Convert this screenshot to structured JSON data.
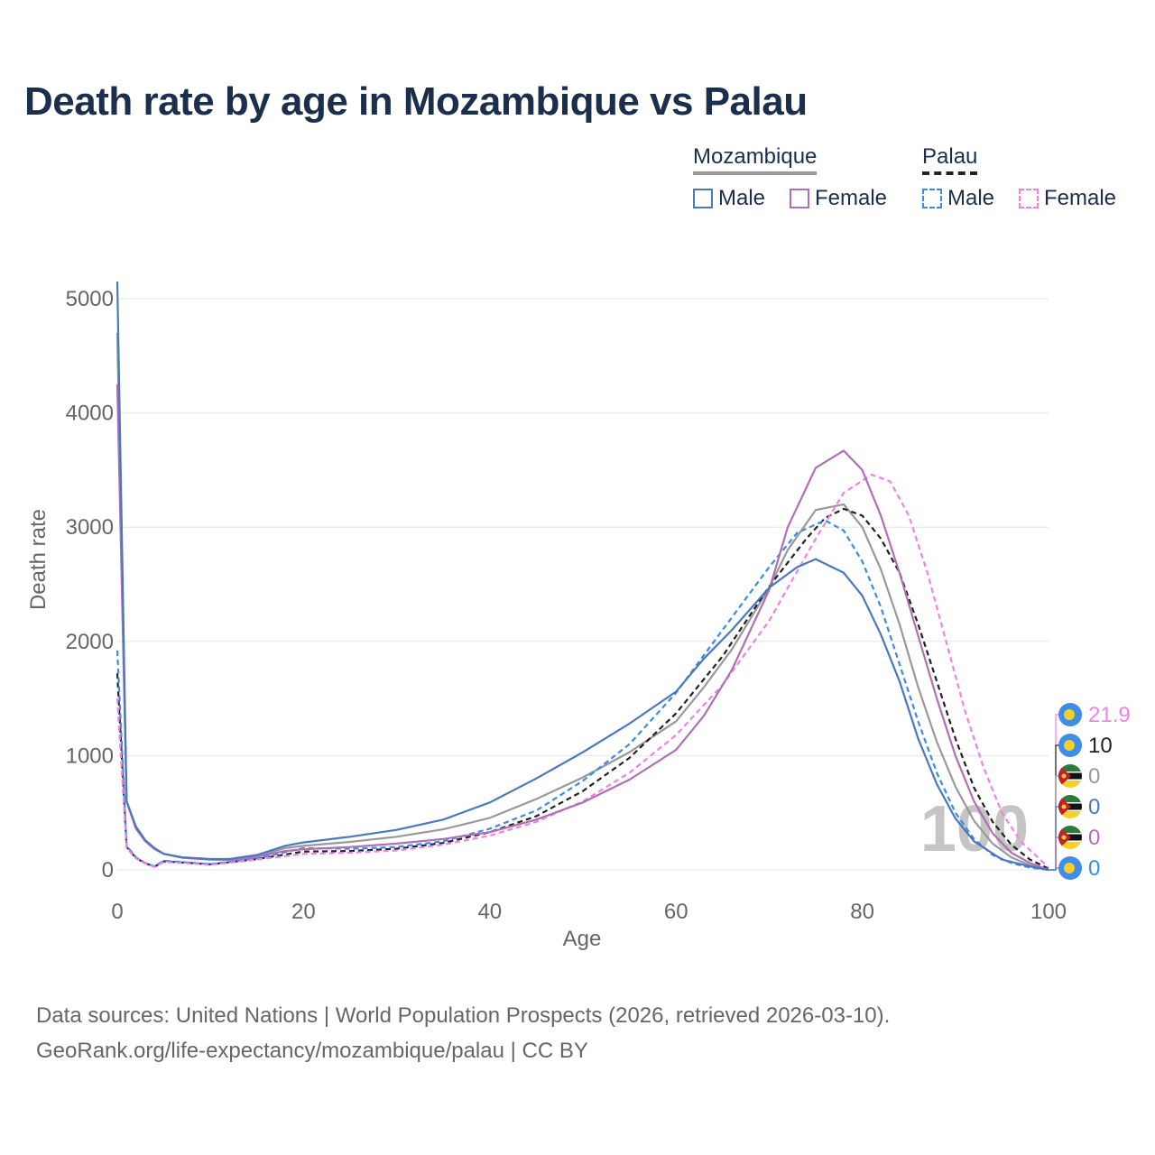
{
  "title": "Death rate by age in Mozambique vs Palau",
  "legend": {
    "groups": [
      {
        "name": "Mozambique",
        "items": [
          {
            "label": "Male",
            "color": "#4a78bf",
            "dash": false
          },
          {
            "label": "Female",
            "color": "#b06fb5",
            "dash": false
          }
        ],
        "underline_color": "#999999"
      },
      {
        "name": "Palau",
        "items": [
          {
            "label": "Male",
            "color": "#3b8be8",
            "dash": true
          },
          {
            "label": "Female",
            "color": "#f082e6",
            "dash": true
          }
        ],
        "underline_color": "#222222"
      }
    ]
  },
  "footer": {
    "line1": "Data sources: United Nations | World Population Prospects (2026, retrieved 2026-03-10).",
    "line2": "GeoRank.org/life-expectancy/mozambique/palau | CC BY"
  },
  "chart_data": {
    "type": "line",
    "title": "Death rate by age in Mozambique vs Palau",
    "xlabel": "Age",
    "ylabel": "Death rate",
    "xlim": [
      0,
      100
    ],
    "ylim": [
      0,
      5150
    ],
    "xticks": [
      0,
      20,
      40,
      60,
      80,
      100
    ],
    "yticks": [
      0,
      1000,
      2000,
      3000,
      4000,
      5000
    ],
    "watermark": "100",
    "series": [
      {
        "name": "Mozambique Male",
        "color": "#4a78bf",
        "dash": false,
        "points": [
          [
            0,
            5150
          ],
          [
            1,
            600
          ],
          [
            2,
            380
          ],
          [
            3,
            260
          ],
          [
            4,
            190
          ],
          [
            5,
            140
          ],
          [
            7,
            110
          ],
          [
            10,
            95
          ],
          [
            12,
            95
          ],
          [
            15,
            130
          ],
          [
            18,
            210
          ],
          [
            20,
            240
          ],
          [
            25,
            290
          ],
          [
            30,
            350
          ],
          [
            35,
            440
          ],
          [
            40,
            590
          ],
          [
            45,
            800
          ],
          [
            50,
            1030
          ],
          [
            55,
            1280
          ],
          [
            60,
            1560
          ],
          [
            63,
            1850
          ],
          [
            66,
            2100
          ],
          [
            70,
            2470
          ],
          [
            73,
            2650
          ],
          [
            75,
            2720
          ],
          [
            78,
            2600
          ],
          [
            80,
            2400
          ],
          [
            82,
            2060
          ],
          [
            84,
            1650
          ],
          [
            86,
            1150
          ],
          [
            88,
            750
          ],
          [
            90,
            450
          ],
          [
            92,
            250
          ],
          [
            95,
            90
          ],
          [
            98,
            30
          ],
          [
            100,
            0
          ]
        ]
      },
      {
        "name": "Mozambique Female",
        "color": "#b06fb5",
        "dash": false,
        "points": [
          [
            0,
            4250
          ],
          [
            1,
            600
          ],
          [
            2,
            360
          ],
          [
            3,
            250
          ],
          [
            4,
            180
          ],
          [
            5,
            140
          ],
          [
            7,
            105
          ],
          [
            10,
            90
          ],
          [
            12,
            88
          ],
          [
            15,
            115
          ],
          [
            18,
            165
          ],
          [
            20,
            180
          ],
          [
            25,
            200
          ],
          [
            30,
            230
          ],
          [
            35,
            270
          ],
          [
            40,
            330
          ],
          [
            45,
            440
          ],
          [
            50,
            590
          ],
          [
            55,
            790
          ],
          [
            60,
            1050
          ],
          [
            63,
            1350
          ],
          [
            66,
            1750
          ],
          [
            70,
            2450
          ],
          [
            72,
            3000
          ],
          [
            75,
            3520
          ],
          [
            78,
            3670
          ],
          [
            80,
            3500
          ],
          [
            82,
            3100
          ],
          [
            84,
            2600
          ],
          [
            86,
            2050
          ],
          [
            88,
            1500
          ],
          [
            90,
            1000
          ],
          [
            92,
            600
          ],
          [
            94,
            320
          ],
          [
            96,
            150
          ],
          [
            98,
            60
          ],
          [
            100,
            0
          ]
        ]
      },
      {
        "name": "Mozambique Total",
        "color": "#999999",
        "dash": false,
        "points": [
          [
            0,
            4700
          ],
          [
            1,
            600
          ],
          [
            2,
            370
          ],
          [
            3,
            255
          ],
          [
            4,
            185
          ],
          [
            5,
            140
          ],
          [
            7,
            108
          ],
          [
            10,
            92
          ],
          [
            12,
            92
          ],
          [
            15,
            122
          ],
          [
            18,
            190
          ],
          [
            20,
            210
          ],
          [
            25,
            245
          ],
          [
            30,
            290
          ],
          [
            35,
            355
          ],
          [
            40,
            455
          ],
          [
            45,
            620
          ],
          [
            50,
            810
          ],
          [
            55,
            1030
          ],
          [
            60,
            1300
          ],
          [
            63,
            1600
          ],
          [
            66,
            1930
          ],
          [
            70,
            2470
          ],
          [
            72,
            2800
          ],
          [
            75,
            3150
          ],
          [
            78,
            3200
          ],
          [
            80,
            3000
          ],
          [
            82,
            2630
          ],
          [
            84,
            2150
          ],
          [
            86,
            1600
          ],
          [
            88,
            1120
          ],
          [
            90,
            730
          ],
          [
            92,
            430
          ],
          [
            94,
            230
          ],
          [
            96,
            110
          ],
          [
            98,
            40
          ],
          [
            100,
            0
          ]
        ]
      },
      {
        "name": "Palau Male",
        "color": "#3b8be8",
        "dash": true,
        "points": [
          [
            0,
            1920
          ],
          [
            1,
            210
          ],
          [
            2,
            110
          ],
          [
            3,
            60
          ],
          [
            4,
            30
          ],
          [
            5,
            80
          ],
          [
            10,
            50
          ],
          [
            15,
            100
          ],
          [
            20,
            190
          ],
          [
            25,
            185
          ],
          [
            30,
            200
          ],
          [
            35,
            250
          ],
          [
            40,
            360
          ],
          [
            45,
            520
          ],
          [
            50,
            780
          ],
          [
            55,
            1100
          ],
          [
            60,
            1550
          ],
          [
            65,
            2100
          ],
          [
            70,
            2650
          ],
          [
            73,
            2950
          ],
          [
            76,
            3060
          ],
          [
            78,
            2970
          ],
          [
            80,
            2700
          ],
          [
            82,
            2300
          ],
          [
            84,
            1800
          ],
          [
            86,
            1300
          ],
          [
            88,
            850
          ],
          [
            90,
            500
          ],
          [
            92,
            270
          ],
          [
            94,
            130
          ],
          [
            96,
            60
          ],
          [
            98,
            20
          ],
          [
            100,
            0
          ]
        ]
      },
      {
        "name": "Palau Female",
        "color": "#f082e6",
        "dash": true,
        "points": [
          [
            0,
            1500
          ],
          [
            1,
            190
          ],
          [
            2,
            100
          ],
          [
            3,
            55
          ],
          [
            4,
            25
          ],
          [
            5,
            70
          ],
          [
            10,
            45
          ],
          [
            15,
            90
          ],
          [
            20,
            140
          ],
          [
            25,
            150
          ],
          [
            30,
            170
          ],
          [
            35,
            220
          ],
          [
            40,
            300
          ],
          [
            45,
            420
          ],
          [
            50,
            600
          ],
          [
            55,
            850
          ],
          [
            60,
            1180
          ],
          [
            65,
            1620
          ],
          [
            70,
            2180
          ],
          [
            75,
            2900
          ],
          [
            78,
            3300
          ],
          [
            81,
            3460
          ],
          [
            83,
            3400
          ],
          [
            85,
            3100
          ],
          [
            87,
            2600
          ],
          [
            89,
            2000
          ],
          [
            91,
            1400
          ],
          [
            93,
            900
          ],
          [
            95,
            500
          ],
          [
            97,
            250
          ],
          [
            100,
            22
          ]
        ]
      },
      {
        "name": "Palau Total",
        "color": "#222222",
        "dash": true,
        "points": [
          [
            0,
            1720
          ],
          [
            1,
            200
          ],
          [
            2,
            105
          ],
          [
            3,
            58
          ],
          [
            4,
            28
          ],
          [
            5,
            75
          ],
          [
            10,
            48
          ],
          [
            15,
            95
          ],
          [
            20,
            160
          ],
          [
            25,
            165
          ],
          [
            30,
            185
          ],
          [
            35,
            235
          ],
          [
            40,
            330
          ],
          [
            45,
            470
          ],
          [
            50,
            690
          ],
          [
            55,
            980
          ],
          [
            60,
            1370
          ],
          [
            65,
            1870
          ],
          [
            70,
            2480
          ],
          [
            74,
            2900
          ],
          [
            76,
            3080
          ],
          [
            78,
            3160
          ],
          [
            80,
            3100
          ],
          [
            82,
            2900
          ],
          [
            84,
            2600
          ],
          [
            86,
            2150
          ],
          [
            88,
            1650
          ],
          [
            90,
            1150
          ],
          [
            92,
            720
          ],
          [
            94,
            420
          ],
          [
            96,
            220
          ],
          [
            98,
            90
          ],
          [
            100,
            10
          ]
        ]
      }
    ],
    "end_labels": [
      {
        "value": "21.9",
        "color": "#f082e6",
        "flag": "palau"
      },
      {
        "value": "10",
        "color": "#222222",
        "flag": "palau"
      },
      {
        "value": "0",
        "color": "#999999",
        "flag": "mozambique"
      },
      {
        "value": "0",
        "color": "#4a78bf",
        "flag": "mozambique"
      },
      {
        "value": "0",
        "color": "#b06fb5",
        "flag": "mozambique"
      },
      {
        "value": "0",
        "color": "#3b8be8",
        "flag": "palau"
      }
    ]
  }
}
